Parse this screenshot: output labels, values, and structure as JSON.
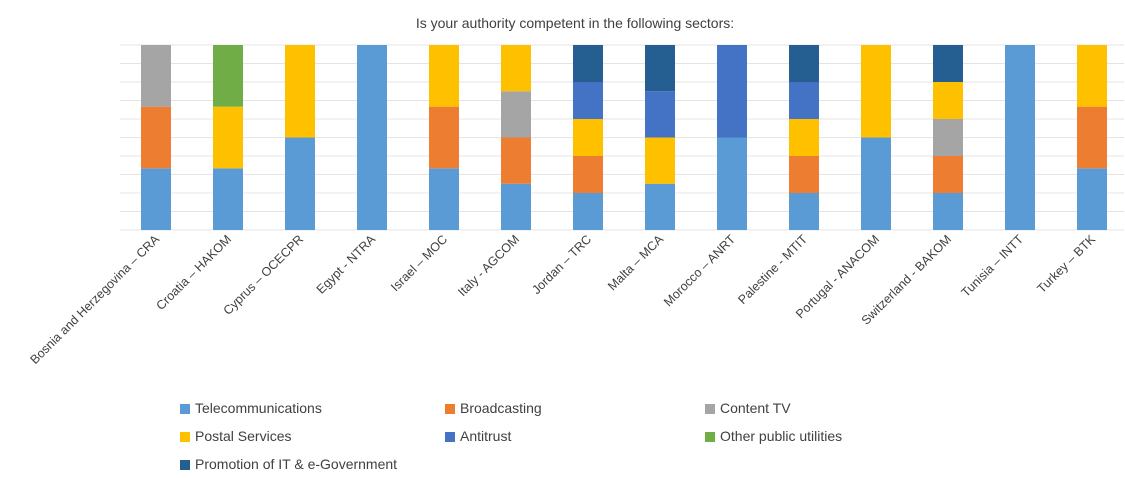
{
  "chart_data": {
    "type": "bar",
    "stacked": true,
    "normalized": true,
    "title": "Is your authority competent in the following sectors:",
    "xlabel": "",
    "ylabel": "",
    "ylim": [
      0,
      1
    ],
    "grid": true,
    "legend_position": "bottom",
    "categories": [
      "Bosnia and Herzegovina – CRA",
      "Croatia – HAKOM",
      "Cyprus – OCECPR",
      "Egypt - NTRA",
      "Israel – MOC",
      "Italy - AGCOM",
      "Jordan – TRC",
      "Malta – MCA",
      "Morocco – ANRT",
      "Palestine - MTIT",
      "Portugal - ANACOM",
      "Switzerland - BAKOM",
      "Tunisia – INTT",
      "Turkey – BTK"
    ],
    "series": [
      {
        "name": "Telecommunications",
        "color": "#5B9BD5",
        "values": [
          1,
          1,
          1,
          1,
          1,
          1,
          1,
          1,
          1,
          1,
          1,
          1,
          1,
          1
        ]
      },
      {
        "name": "Broadcasting",
        "color": "#ED7D31",
        "values": [
          1,
          0,
          0,
          0,
          1,
          1,
          1,
          0,
          0,
          1,
          0,
          1,
          0,
          1
        ]
      },
      {
        "name": "Content TV",
        "color": "#A5A5A5",
        "values": [
          1,
          0,
          0,
          0,
          0,
          1,
          0,
          0,
          0,
          0,
          0,
          1,
          0,
          0
        ]
      },
      {
        "name": "Postal Services",
        "color": "#FFC000",
        "values": [
          0,
          1,
          1,
          0,
          1,
          1,
          1,
          1,
          0,
          1,
          1,
          1,
          0,
          1
        ]
      },
      {
        "name": "Antitrust",
        "color": "#4472C4",
        "values": [
          0,
          0,
          0,
          0,
          0,
          0,
          1,
          1,
          1,
          1,
          0,
          0,
          0,
          0
        ]
      },
      {
        "name": "Other public utilities",
        "color": "#70AD47",
        "values": [
          0,
          1,
          0,
          0,
          0,
          0,
          0,
          0,
          0,
          0,
          0,
          0,
          0,
          0
        ]
      },
      {
        "name": "Promotion of IT & e-Government",
        "color": "#255E91",
        "values": [
          0,
          0,
          0,
          0,
          0,
          0,
          1,
          1,
          0,
          1,
          0,
          1,
          0,
          0
        ]
      }
    ]
  }
}
